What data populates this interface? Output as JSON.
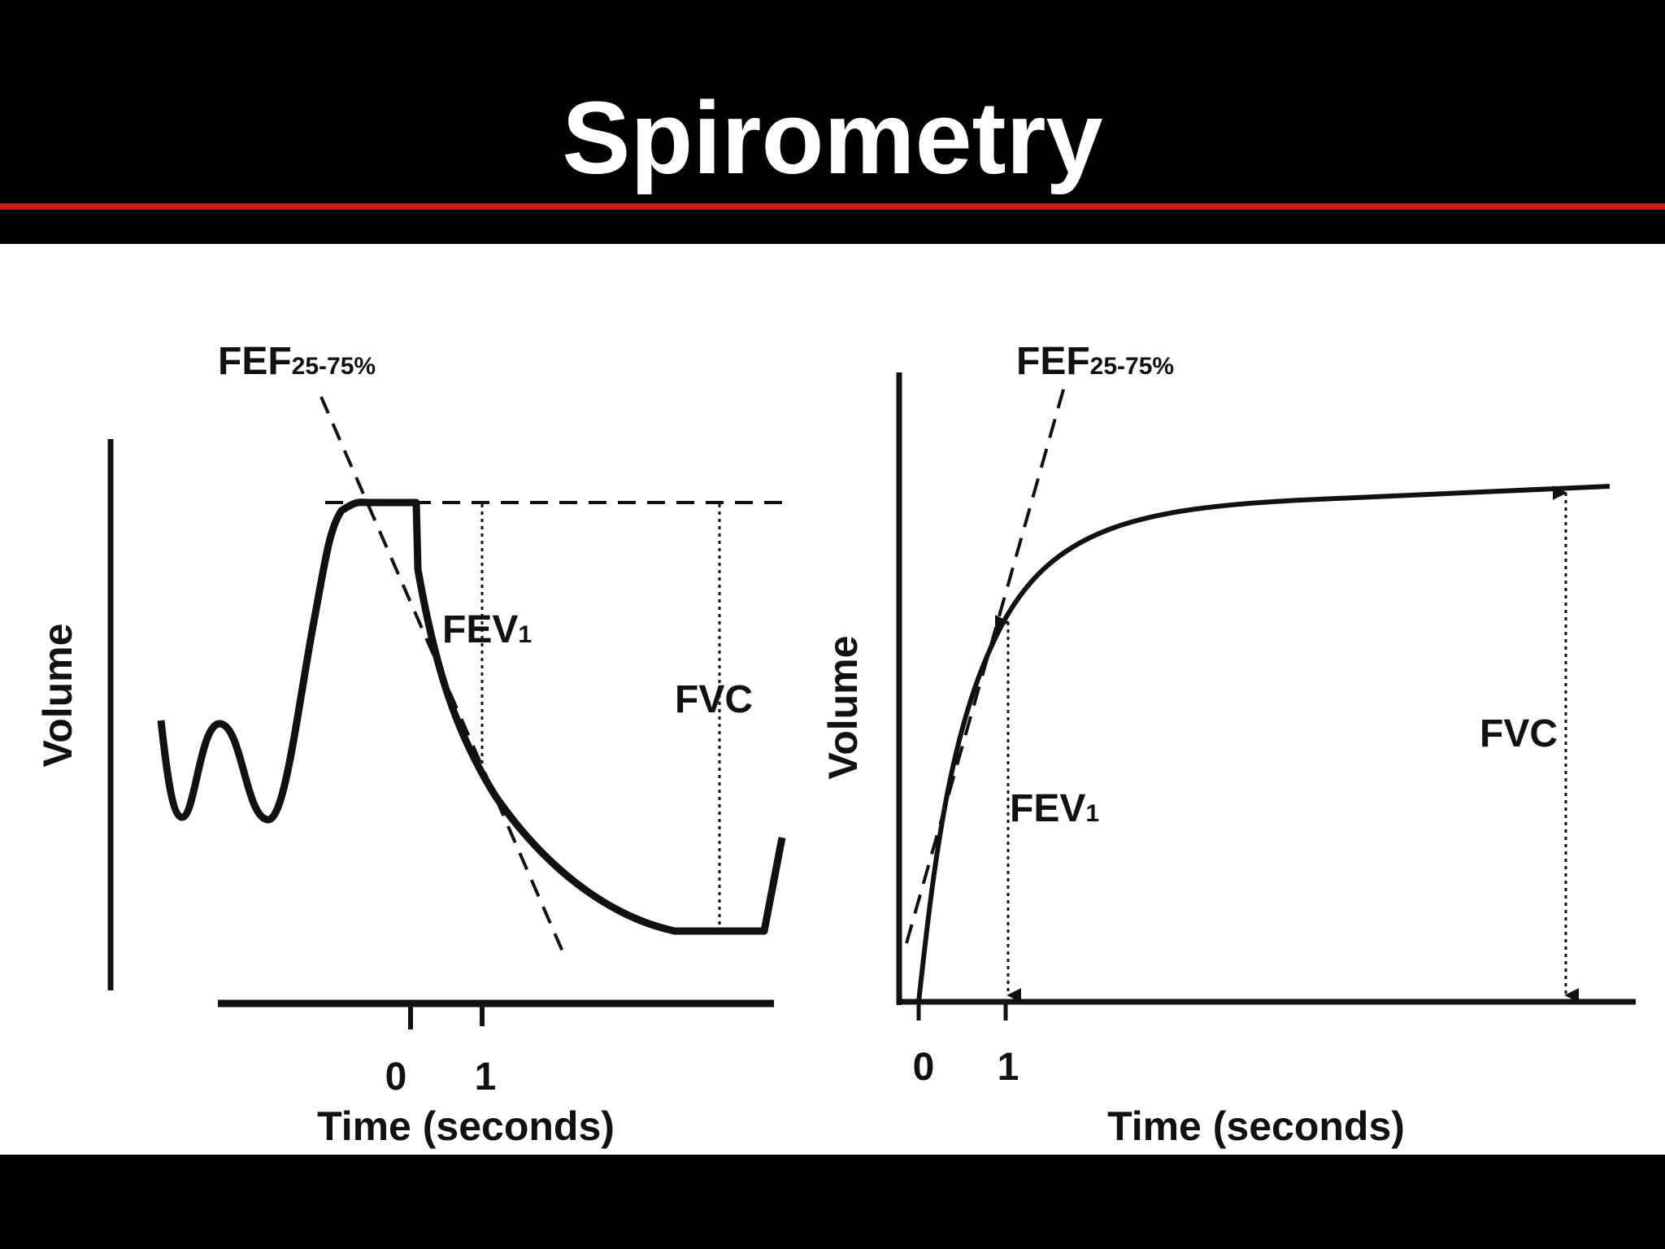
{
  "slide": {
    "title": "Spirometry",
    "colors": {
      "header": "#000000",
      "rule": "#cc1b1b",
      "background": "#ffffff"
    }
  },
  "left_graph": {
    "y_label": "Volume",
    "x_label": "Time (seconds)",
    "ticks": [
      "0",
      "1"
    ],
    "fef_label": "FEF",
    "fef_sub": "25-75%",
    "fev_label": "FEV",
    "fev_sub": "1",
    "fvc_label": "FVC"
  },
  "right_graph": {
    "y_label": "Volume",
    "x_label": "Time (seconds)",
    "ticks": [
      "0",
      "1"
    ],
    "fef_label": "FEF",
    "fef_sub": "25-75%",
    "fev_label": "FEV",
    "fev_sub": "1",
    "fvc_label": "FVC"
  }
}
